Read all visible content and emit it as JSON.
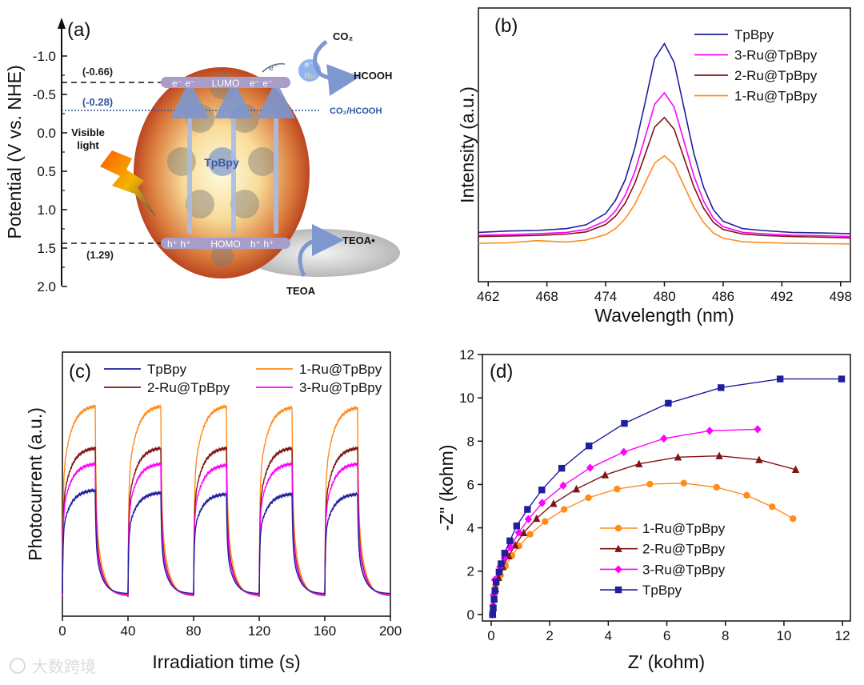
{
  "figure": {
    "watermark": "大数跨境"
  },
  "panel_a": {
    "label": "(a)",
    "y_axis_label": "Potential (V vs. NHE)",
    "y_ticks": [
      "-1.0",
      "-0.5",
      "0.0",
      "0.5",
      "1.0",
      "1.5",
      "2.0"
    ],
    "lumo_value": "(-0.66)",
    "couple_value": "(-0.28)",
    "homo_value": "(1.29)",
    "lumo_label": "LUMO",
    "homo_label": "HOMO",
    "electrons": "e⁻ e⁻",
    "holes": "h⁺ h⁺",
    "material": "TpBpy",
    "light_line1": "Visible",
    "light_line2": "light",
    "co2": "CO₂",
    "hcooh": "HCOOH",
    "couple": "CO₂/HCOOH",
    "ru": "Ru",
    "electron": "e⁻",
    "teoa": "TEOA",
    "teoa_ox": "TEOA•",
    "colors": {
      "couple": "#2f55a4",
      "shell": "#b8321a",
      "band": "#a89cc8"
    }
  },
  "chart_data": [
    {
      "id": "b",
      "type": "line",
      "label": "(b)",
      "xlabel": "Wavelength (nm)",
      "ylabel": "Intensity (a.u.)",
      "xlim": [
        461,
        499
      ],
      "ylim": [
        0,
        1
      ],
      "x_ticks": [
        462,
        468,
        474,
        480,
        486,
        492,
        498
      ],
      "y_ticks_shown": false,
      "legend_position": "top-right",
      "x": [
        461,
        464,
        467,
        470,
        472,
        474,
        475,
        476,
        477,
        478,
        479,
        480,
        481,
        482,
        483,
        484,
        485,
        486,
        488,
        490,
        493,
        496,
        499
      ],
      "series": [
        {
          "name": "TpBpy",
          "color": "#1f1f9c",
          "values": [
            0.18,
            0.185,
            0.187,
            0.194,
            0.208,
            0.249,
            0.297,
            0.373,
            0.491,
            0.649,
            0.815,
            0.87,
            0.801,
            0.635,
            0.47,
            0.346,
            0.263,
            0.221,
            0.194,
            0.187,
            0.18,
            0.178,
            0.175
          ]
        },
        {
          "name": "3-Ru@TpBpy",
          "color": "#ff00ff",
          "values": [
            0.17,
            0.172,
            0.175,
            0.18,
            0.191,
            0.222,
            0.258,
            0.316,
            0.404,
            0.524,
            0.648,
            0.69,
            0.638,
            0.513,
            0.388,
            0.295,
            0.232,
            0.201,
            0.18,
            0.175,
            0.17,
            0.168,
            0.165
          ]
        },
        {
          "name": "2-Ru@TpBpy",
          "color": "#7f1414",
          "values": [
            0.165,
            0.167,
            0.169,
            0.174,
            0.182,
            0.209,
            0.239,
            0.287,
            0.361,
            0.461,
            0.565,
            0.6,
            0.557,
            0.452,
            0.348,
            0.269,
            0.217,
            0.191,
            0.174,
            0.169,
            0.165,
            0.163,
            0.16
          ]
        },
        {
          "name": "1-Ru@TpBpy",
          "color": "#ff8c1a",
          "values": [
            0.14,
            0.142,
            0.15,
            0.145,
            0.152,
            0.172,
            0.194,
            0.23,
            0.284,
            0.358,
            0.434,
            0.46,
            0.428,
            0.351,
            0.274,
            0.217,
            0.178,
            0.159,
            0.146,
            0.143,
            0.14,
            0.139,
            0.138
          ]
        }
      ]
    },
    {
      "id": "c",
      "type": "line",
      "label": "(c)",
      "xlabel": "Irradiation time (s)",
      "ylabel": "Photocurrent (a.u.)",
      "xlim": [
        0,
        200
      ],
      "ylim": [
        0,
        1
      ],
      "x_ticks": [
        0,
        40,
        80,
        120,
        160,
        200
      ],
      "y_ticks_shown": false,
      "legend_position": "top",
      "light_on_intervals": [
        [
          0,
          20
        ],
        [
          40,
          60
        ],
        [
          80,
          100
        ],
        [
          120,
          140
        ],
        [
          160,
          180
        ]
      ],
      "series": [
        {
          "name": "TpBpy",
          "color": "#1f1f9c",
          "dark_level": 0.085,
          "on_levels": [
            0.48,
            0.47,
            0.465,
            0.465,
            0.465
          ]
        },
        {
          "name": "1-Ru@TpBpy",
          "color": "#ff8c1a",
          "dark_level": 0.075,
          "on_levels": [
            0.8,
            0.8,
            0.8,
            0.795,
            0.795
          ]
        },
        {
          "name": "2-Ru@TpBpy",
          "color": "#7f1414",
          "dark_level": 0.078,
          "on_levels": [
            0.64,
            0.64,
            0.64,
            0.64,
            0.64
          ]
        },
        {
          "name": "3-Ru@TpBpy",
          "color": "#ff00ff",
          "dark_level": 0.08,
          "on_levels": [
            0.58,
            0.58,
            0.575,
            0.58,
            0.58
          ]
        }
      ]
    },
    {
      "id": "d",
      "type": "scatter",
      "label": "(d)",
      "xlabel": "Z' (kohm)",
      "ylabel": "-Z\" (kohm)",
      "xlim": [
        -0.3,
        12.27
      ],
      "ylim": [
        -0.3,
        12
      ],
      "x_ticks": [
        0,
        2,
        4,
        6,
        8,
        10,
        12
      ],
      "y_ticks": [
        0,
        2,
        4,
        6,
        8,
        10,
        12
      ],
      "legend_position": "center-bottom",
      "series": [
        {
          "name": "1-Ru@TpBpy",
          "color": "#ff8c1a",
          "marker": "circle",
          "points": [
            [
              0.05,
              0
            ],
            [
              0.07,
              0.4
            ],
            [
              0.1,
              0.9
            ],
            [
              0.15,
              1.35
            ],
            [
              0.32,
              1.81
            ],
            [
              0.49,
              2.24
            ],
            [
              0.71,
              2.72
            ],
            [
              0.95,
              3.16
            ],
            [
              1.33,
              3.7
            ],
            [
              1.84,
              4.29
            ],
            [
              2.49,
              4.85
            ],
            [
              3.32,
              5.39
            ],
            [
              4.3,
              5.79
            ],
            [
              5.42,
              6.02
            ],
            [
              6.58,
              6.06
            ],
            [
              7.7,
              5.87
            ],
            [
              8.73,
              5.5
            ],
            [
              9.6,
              4.97
            ],
            [
              10.31,
              4.42
            ]
          ]
        },
        {
          "name": "2-Ru@TpBpy",
          "color": "#7f1414",
          "marker": "triangle",
          "points": [
            [
              0.05,
              0
            ],
            [
              0.07,
              0.3
            ],
            [
              0.1,
              0.7
            ],
            [
              0.15,
              1.2
            ],
            [
              0.25,
              1.7
            ],
            [
              0.4,
              2.2
            ],
            [
              0.6,
              2.7
            ],
            [
              0.82,
              3.2
            ],
            [
              1.11,
              3.77
            ],
            [
              1.55,
              4.43
            ],
            [
              2.13,
              5.12
            ],
            [
              2.91,
              5.79
            ],
            [
              3.89,
              6.44
            ],
            [
              5.05,
              6.95
            ],
            [
              6.38,
              7.26
            ],
            [
              7.79,
              7.32
            ],
            [
              9.15,
              7.14
            ],
            [
              10.4,
              6.69
            ]
          ]
        },
        {
          "name": "3-Ru@TpBpy",
          "color": "#ff00ff",
          "marker": "diamond",
          "points": [
            [
              0.04,
              0
            ],
            [
              0.06,
              0.4
            ],
            [
              0.08,
              0.9
            ],
            [
              0.12,
              1.6
            ],
            [
              0.3,
              2.2
            ],
            [
              0.45,
              2.6
            ],
            [
              0.65,
              3.1
            ],
            [
              0.94,
              3.78
            ],
            [
              1.27,
              4.4
            ],
            [
              1.74,
              5.15
            ],
            [
              2.46,
              5.95
            ],
            [
              3.38,
              6.77
            ],
            [
              4.53,
              7.5
            ],
            [
              5.9,
              8.12
            ],
            [
              7.46,
              8.48
            ],
            [
              9.1,
              8.55
            ]
          ]
        },
        {
          "name": "TpBpy",
          "color": "#1f1f9c",
          "marker": "square",
          "points": [
            [
              0.05,
              0
            ],
            [
              0.07,
              0.3
            ],
            [
              0.1,
              0.7
            ],
            [
              0.13,
              1.1
            ],
            [
              0.17,
              1.5
            ],
            [
              0.27,
              1.96
            ],
            [
              0.34,
              2.34
            ],
            [
              0.46,
              2.83
            ],
            [
              0.64,
              3.4
            ],
            [
              0.87,
              4.09
            ],
            [
              1.24,
              4.85
            ],
            [
              1.73,
              5.75
            ],
            [
              2.41,
              6.75
            ],
            [
              3.34,
              7.78
            ],
            [
              4.55,
              8.82
            ],
            [
              6.05,
              9.75
            ],
            [
              7.85,
              10.47
            ],
            [
              9.87,
              10.87
            ],
            [
              11.97,
              10.87
            ]
          ]
        }
      ]
    }
  ]
}
